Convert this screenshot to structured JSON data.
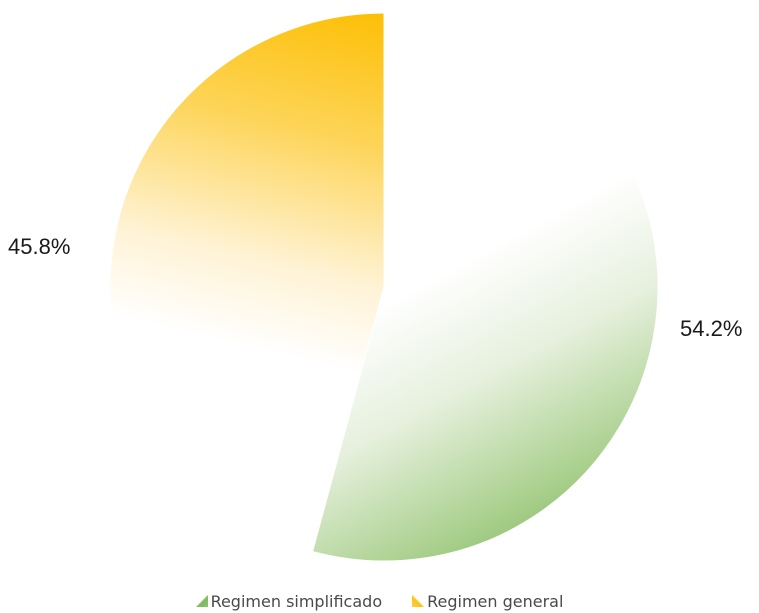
{
  "chart_data": {
    "type": "pie",
    "title": "",
    "start_angle_deg": 0,
    "direction": "clockwise",
    "slices": [
      {
        "name": "Regimen simplificado",
        "value": 54.2,
        "label": "54.2%",
        "color": "#7fb85f"
      },
      {
        "name": "Regimen general",
        "value": 45.8,
        "label": "45.8%",
        "color": "#fdc311"
      }
    ],
    "legend": {
      "position": "bottom",
      "items": [
        "Regimen simplificado",
        "Regimen general"
      ]
    }
  }
}
